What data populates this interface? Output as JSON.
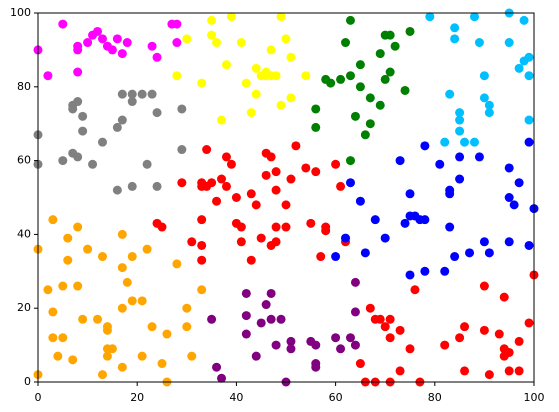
{
  "chart_data": {
    "type": "scatter",
    "xlim": [
      0,
      100
    ],
    "ylim": [
      0,
      100
    ],
    "xticks": [
      0,
      20,
      40,
      60,
      80,
      100
    ],
    "yticks": [
      0,
      20,
      40,
      60,
      80,
      100
    ],
    "series": [
      {
        "color": "#ff00ff",
        "x": [
          0,
          2,
          5,
          8,
          8,
          8,
          10,
          11,
          12,
          13,
          14,
          15,
          16,
          17,
          18,
          23,
          24,
          27,
          28,
          28
        ],
        "values": [
          90,
          83,
          97,
          90,
          91,
          84,
          92,
          94,
          95,
          93,
          91,
          90,
          93,
          89,
          92,
          91,
          88,
          97,
          97,
          92
        ]
      },
      {
        "color": "#808080",
        "x": [
          0,
          0,
          5,
          7,
          7,
          7,
          8,
          8,
          9,
          9,
          11,
          13,
          16,
          16,
          17,
          17,
          19,
          19,
          19,
          21,
          22,
          23,
          24,
          24,
          29,
          29
        ],
        "values": [
          67,
          59,
          60,
          62,
          74,
          75,
          76,
          61,
          68,
          72,
          59,
          65,
          69,
          52,
          78,
          71,
          78,
          53,
          76,
          78,
          59,
          78,
          73,
          53,
          74,
          63
        ]
      },
      {
        "color": "#ffff00",
        "x": [
          28,
          30,
          33,
          35,
          35,
          36,
          37,
          38,
          39,
          41,
          42,
          43,
          44,
          44,
          45,
          46,
          46,
          47,
          47,
          48,
          49,
          49,
          50,
          51,
          51,
          54
        ],
        "values": [
          83,
          93,
          81,
          98,
          94,
          92,
          71,
          86,
          99,
          92,
          81,
          73,
          85,
          78,
          83,
          83,
          84,
          83,
          90,
          83,
          75,
          99,
          93,
          88,
          77,
          83
        ]
      },
      {
        "color": "#008000",
        "x": [
          56,
          56,
          58,
          59,
          61,
          62,
          63,
          63,
          63,
          64,
          65,
          65,
          66,
          67,
          67,
          69,
          69,
          70,
          70,
          71,
          71,
          72,
          74,
          75
        ],
        "values": [
          74,
          69,
          82,
          81,
          82,
          92,
          98,
          83,
          60,
          72,
          80,
          86,
          67,
          70,
          77,
          75,
          89,
          94,
          82,
          84,
          94,
          91,
          79,
          95
        ]
      },
      {
        "color": "#00bfff",
        "x": [
          79,
          82,
          83,
          84,
          84,
          85,
          85,
          85,
          86,
          88,
          88,
          89,
          90,
          90,
          91,
          91,
          95,
          95,
          97,
          98,
          98,
          99,
          99,
          99
        ],
        "values": [
          99,
          65,
          78,
          93,
          96,
          73,
          71,
          68,
          65,
          99,
          65,
          92,
          83,
          77,
          73,
          75,
          100,
          92,
          85,
          87,
          98,
          88,
          83,
          71
        ]
      },
      {
        "color": "#ff0000",
        "x": [
          29,
          31,
          33,
          33,
          33,
          33,
          33,
          34,
          34,
          35,
          36,
          37,
          38,
          38,
          39,
          40,
          40,
          41,
          41,
          43,
          43,
          44,
          45,
          46,
          46,
          47,
          47,
          48,
          48,
          48,
          48,
          50,
          50,
          51,
          52,
          54,
          55,
          56,
          57,
          58,
          58,
          60,
          61,
          24,
          25,
          62
        ],
        "values": [
          54,
          38,
          53,
          54,
          44,
          37,
          33,
          63,
          53,
          54,
          49,
          55,
          61,
          53,
          59,
          43,
          50,
          42,
          38,
          51,
          33,
          48,
          39,
          56,
          62,
          37,
          61,
          57,
          52,
          42,
          38,
          48,
          42,
          55,
          64,
          58,
          43,
          57,
          34,
          42,
          41,
          59,
          53,
          43,
          42,
          38
        ]
      },
      {
        "color": "#ffa500",
        "x": [
          0,
          0,
          2,
          3,
          3,
          3,
          4,
          5,
          5,
          6,
          6,
          7,
          8,
          8,
          9,
          10,
          12,
          13,
          13,
          14,
          14,
          14,
          14,
          15,
          17,
          17,
          17,
          17,
          18,
          19,
          19,
          21,
          21,
          23,
          25,
          26,
          26,
          28,
          30,
          30,
          31,
          33,
          22
        ],
        "values": [
          36,
          2,
          25,
          44,
          19,
          12,
          7,
          26,
          12,
          39,
          33,
          6,
          42,
          26,
          17,
          36,
          17,
          34,
          2,
          15,
          7,
          9,
          14,
          9,
          40,
          31,
          20,
          4,
          27,
          34,
          22,
          22,
          7,
          15,
          5,
          13,
          0,
          32,
          20,
          15,
          7,
          25,
          36
        ]
      },
      {
        "color": "#800080",
        "x": [
          35,
          36,
          37,
          42,
          42,
          42,
          44,
          45,
          46,
          47,
          47,
          48,
          49,
          50,
          51,
          51,
          55,
          56,
          56,
          56,
          60,
          61,
          63,
          64,
          64,
          64
        ],
        "values": [
          17,
          4,
          1,
          24,
          18,
          13,
          7,
          16,
          21,
          24,
          17,
          10,
          17,
          0,
          11,
          9,
          11,
          10,
          5,
          4,
          12,
          9,
          12,
          27,
          19,
          10
        ]
      },
      {
        "color": "#0000ff",
        "x": [
          60,
          62,
          63,
          65,
          66,
          68,
          70,
          73,
          74,
          75,
          75,
          75,
          76,
          77,
          78,
          78,
          78,
          81,
          82,
          83,
          83,
          83,
          84,
          85,
          85,
          87,
          89,
          90,
          91,
          95,
          95,
          95,
          96,
          97,
          99,
          99,
          100
        ],
        "values": [
          34,
          39,
          54,
          49,
          35,
          44,
          39,
          60,
          43,
          45,
          51,
          29,
          45,
          44,
          44,
          64,
          30,
          59,
          30,
          52,
          51,
          42,
          34,
          55,
          61,
          35,
          61,
          38,
          35,
          58,
          50,
          38,
          48,
          54,
          65,
          37,
          47
        ]
      },
      {
        "color": "#ff0000",
        "x": [
          67,
          68,
          69,
          70,
          71,
          71,
          73,
          75,
          76,
          71,
          68,
          65,
          66,
          73,
          77,
          82,
          85,
          86,
          86,
          90,
          90,
          91,
          93,
          94,
          94,
          94,
          95,
          95,
          97,
          97,
          99,
          100
        ],
        "values": [
          20,
          17,
          17,
          15,
          17,
          12,
          14,
          9,
          25,
          0,
          0,
          5,
          0,
          3,
          0,
          10,
          12,
          3,
          15,
          26,
          14,
          2,
          13,
          23,
          9,
          7,
          8,
          3,
          11,
          3,
          16,
          29
        ]
      }
    ]
  }
}
